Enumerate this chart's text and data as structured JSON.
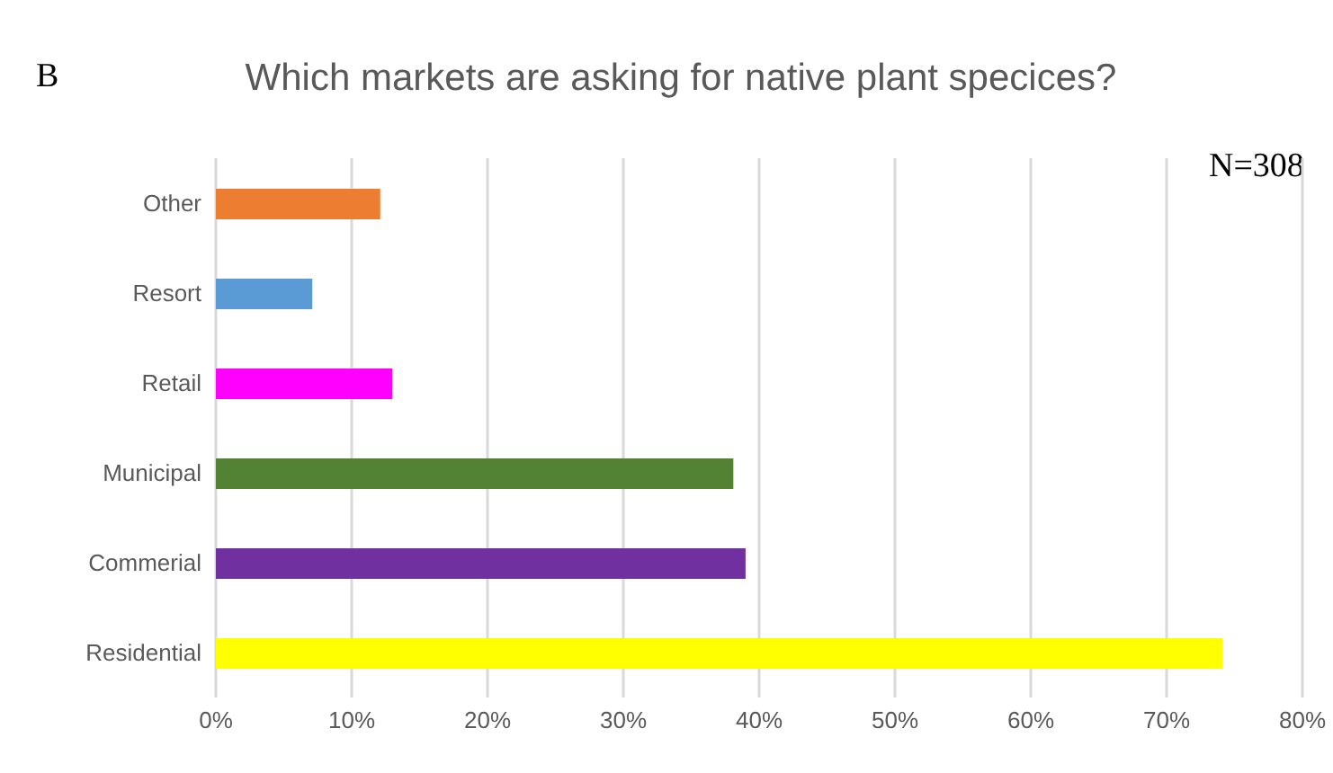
{
  "chart_data": {
    "type": "bar",
    "orientation": "horizontal",
    "title": "Which markets are asking for native plant specices?",
    "annotations": [
      "B",
      "N=308"
    ],
    "categories": [
      "Other",
      "Resort",
      "Retail",
      "Municipal",
      "Commerial",
      "Residential"
    ],
    "values": [
      12.1,
      7.1,
      13,
      38.1,
      39,
      74.1
    ],
    "colors": [
      "#ed7d31",
      "#5b9bd5",
      "#ff00ff",
      "#548235",
      "#7030a0",
      "#ffff00"
    ],
    "xlim": [
      0,
      80
    ],
    "xticks": [
      {
        "value": 0,
        "label": "0%"
      },
      {
        "value": 10,
        "label": "10%"
      },
      {
        "value": 20,
        "label": "20%"
      },
      {
        "value": 30,
        "label": "30%"
      },
      {
        "value": 40,
        "label": "40%"
      },
      {
        "value": 50,
        "label": "50%"
      },
      {
        "value": 60,
        "label": "60%"
      },
      {
        "value": 70,
        "label": "70%"
      },
      {
        "value": 80,
        "label": "80%"
      }
    ],
    "grid": "x",
    "legend": false
  }
}
